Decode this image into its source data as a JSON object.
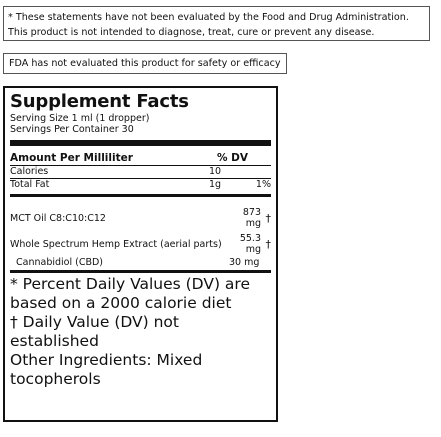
{
  "disclaimer": {
    "line1": "* These statements have not been evaluated by the Food and Drug Administration.",
    "line2": "This product is not intended to diagnose, treat, cure or prevent any disease."
  },
  "fda_note": "FDA has not evaluated this product for safety or efficacy",
  "facts": {
    "title": "Supplement Facts",
    "serving_size": "Serving Size 1 ml (1 dropper)",
    "servings_per_container": "Servings Per Container 30",
    "header": {
      "amount": "Amount Per Milliliter",
      "dv": "% DV"
    },
    "nutrients": [
      {
        "name": "Calories",
        "amount": "10",
        "dv": ""
      },
      {
        "name": "Total Fat",
        "amount": "1g",
        "dv": "1%"
      }
    ],
    "ingredients": [
      {
        "name": "MCT Oil C8:C10:C12",
        "amount_value": "873",
        "amount_unit": "mg",
        "mark": "†"
      },
      {
        "name": "Whole Spectrum Hemp Extract (aerial parts)",
        "amount_value": "55.3",
        "amount_unit": "mg",
        "mark": "†"
      }
    ],
    "sub_ingredient": {
      "name": "Cannabidiol (CBD)",
      "amount": "30 mg"
    },
    "footnotes": [
      "* Percent Daily Values (DV) are based on a 2000 calorie diet",
      "† Daily Value (DV) not established",
      "Other Ingredients: Mixed tocopherols"
    ]
  }
}
